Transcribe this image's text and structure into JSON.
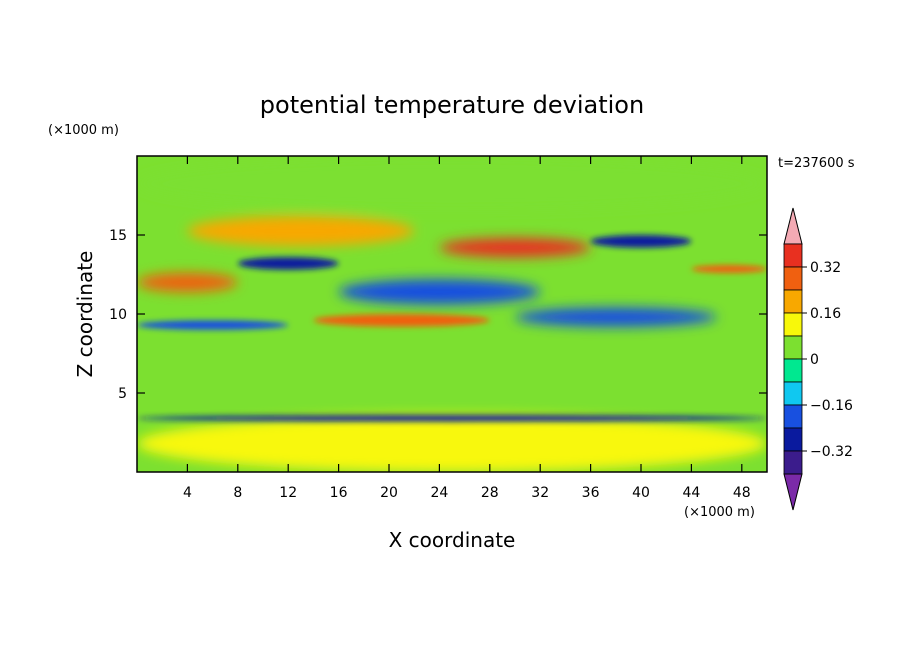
{
  "chart_data": {
    "type": "heatmap",
    "title": "potential temperature deviation",
    "xlabel": "X coordinate",
    "ylabel": "Z coordinate",
    "x_unit": "(×1000 m)",
    "y_unit": "(×1000 m)",
    "time_label": "t=237600 s",
    "xlim": [
      0,
      50
    ],
    "ylim": [
      0,
      20
    ],
    "x_ticks": [
      4,
      8,
      12,
      16,
      20,
      24,
      28,
      32,
      36,
      40,
      44,
      48
    ],
    "y_ticks": [
      5,
      10,
      15
    ],
    "colorbar": {
      "levels": [
        -0.4,
        -0.32,
        -0.24,
        -0.16,
        -0.08,
        0,
        0.08,
        0.16,
        0.24,
        0.32,
        0.4
      ],
      "labels": [
        "0.32",
        "0.16",
        "0",
        "−0.16",
        "−0.32"
      ],
      "label_values": [
        0.32,
        0.16,
        0,
        -0.16,
        -0.32
      ],
      "colors": [
        "#7b2aa8",
        "#3b1c8c",
        "#0a1a9e",
        "#1850e0",
        "#10c8f0",
        "#00e890",
        "#7ce030",
        "#f8f80a",
        "#f8a800",
        "#f06010",
        "#e83020",
        "#f4aab4"
      ]
    },
    "bands": [
      {
        "z": [
          16.5,
          20
        ],
        "x": [
          0,
          50
        ],
        "value": 0.0
      },
      {
        "z": [
          14.3,
          16.2
        ],
        "x": [
          4,
          22
        ],
        "value": 0.16
      },
      {
        "z": [
          12.8,
          13.6
        ],
        "x": [
          8,
          16
        ],
        "value": -0.32
      },
      {
        "z": [
          11.4,
          12.6
        ],
        "x": [
          0,
          8
        ],
        "value": 0.24
      },
      {
        "z": [
          13.6,
          14.8
        ],
        "x": [
          24,
          36
        ],
        "value": 0.32
      },
      {
        "z": [
          14.2,
          15.0
        ],
        "x": [
          36,
          44
        ],
        "value": -0.32
      },
      {
        "z": [
          12.6,
          13.1
        ],
        "x": [
          44,
          50
        ],
        "value": 0.24
      },
      {
        "z": [
          10.6,
          12.2
        ],
        "x": [
          16,
          32
        ],
        "value": -0.24
      },
      {
        "z": [
          9.2,
          10.0
        ],
        "x": [
          14,
          28
        ],
        "value": 0.24
      },
      {
        "z": [
          9.0,
          9.6
        ],
        "x": [
          0,
          12
        ],
        "value": -0.24
      },
      {
        "z": [
          9.2,
          10.4
        ],
        "x": [
          30,
          46
        ],
        "value": -0.24
      },
      {
        "z": [
          0,
          3.6
        ],
        "x": [
          0,
          50
        ],
        "value": 0.08
      },
      {
        "z": [
          3.2,
          3.6
        ],
        "x": [
          0,
          50
        ],
        "value": -0.32
      }
    ]
  }
}
